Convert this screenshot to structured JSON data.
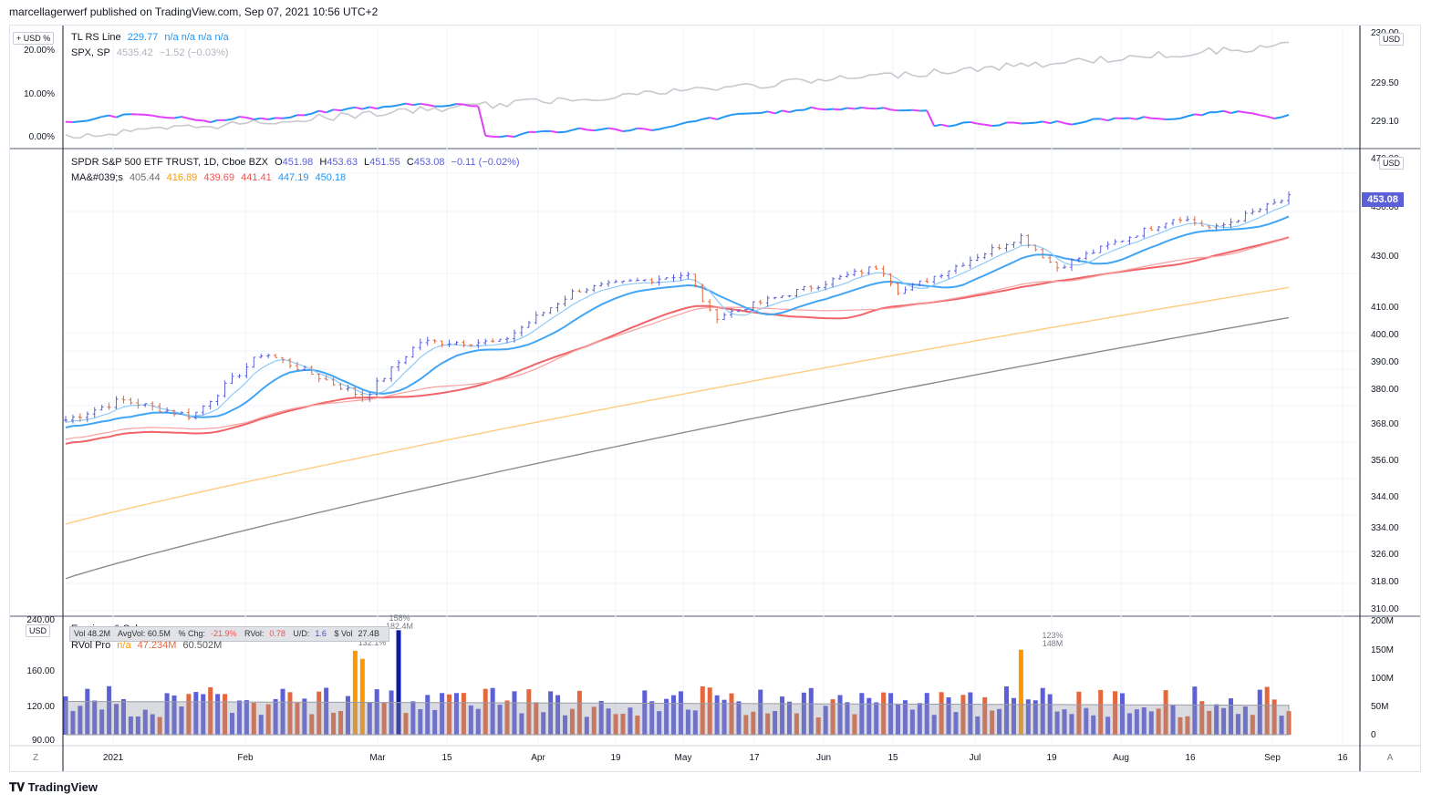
{
  "header": {
    "published": "marcellagerwerf published on TradingView.com, Sep 07, 2021 10:56 UTC+2"
  },
  "footer": {
    "brand": "TradingView",
    "logo": "tradingview-logo"
  },
  "colors": {
    "rs_line": "#2196f3",
    "rs_line_down": "#e040fb",
    "spx": "#c8c9cf",
    "ma_fast_light": "#90caf9",
    "ma_blue": "#42a5f5",
    "ma_red": "#f06468",
    "ma_orange": "#ffcc80",
    "ma_gray": "#8c8c8c",
    "bar_up": "#5b5fd8",
    "bar_down": "#e4683c",
    "bar_high": "#ff9800",
    "bar_max": "#0d1b9e"
  },
  "rs_pane": {
    "currency_badge": "+ USD %",
    "right_badge": "USD",
    "rs_legend": {
      "name": "TL RS Line",
      "value": "229.77",
      "extra": "n/a  n/a  n/a  n/a"
    },
    "spx_legend": {
      "name": "SPX, SP",
      "value": "4535.42",
      "change": "−1.52 (−0.03%)"
    },
    "left_ticks": [
      "20.00%",
      "10.00%",
      "0.00%"
    ],
    "right_ticks": [
      "230.00",
      "229.50",
      "229.10"
    ]
  },
  "price_pane": {
    "legend": {
      "title": "SPDR S&P 500 ETF TRUST, 1D, Cboe BZX",
      "o_label": "O",
      "o_val": "451.98",
      "h_label": "H",
      "h_val": "453.63",
      "l_label": "L",
      "l_val": "451.55",
      "c_label": "C",
      "c_val": "453.08",
      "chg": "−0.11 (−0.02%)"
    },
    "ma_legend": {
      "label": "MA&#039;s",
      "values": [
        "405.44",
        "416.89",
        "439.69",
        "441.41",
        "447.19",
        "450.18"
      ]
    },
    "right_badge": "USD",
    "last_price": "453.08",
    "y_ticks": [
      "470.00",
      "450.00",
      "430.00",
      "410.00",
      "400.00",
      "390.00",
      "380.00",
      "368.00",
      "356.00",
      "344.00",
      "334.00",
      "326.00",
      "318.00",
      "310.00"
    ]
  },
  "volume_pane": {
    "left_badge": "USD",
    "left_ticks": [
      "240.00",
      "160.00",
      "120.00",
      "90.00"
    ],
    "right_ticks": [
      "200M",
      "150M",
      "100M",
      "50M",
      "0"
    ],
    "legend_title": "Earnings & Sales",
    "rvol_legend": {
      "name": "RVol Pro",
      "v1": "n/a",
      "v2": "47.234M",
      "v3": "60.502M"
    },
    "stats": {
      "vol": "Vol 48.2M",
      "avg": "AvgVol: 60.5M",
      "pct_label": "% Chg:",
      "pct_val": "-21.9%",
      "rvol_label": "RVol:",
      "rvol_val": "0.78",
      "ud_label": "U/D:",
      "ud_val": "1.6",
      "dvol_label": "$ Vol",
      "dvol_val": "27.4B"
    },
    "annotations": [
      {
        "pct": "132.1%",
        "vol": ""
      },
      {
        "pct": "158%",
        "vol": "182.4M"
      },
      {
        "pct": "123%",
        "vol": "148M"
      }
    ]
  },
  "time_axis": {
    "left_corner": "Z",
    "right_corner": "A",
    "labels": [
      "2021",
      "Feb",
      "Mar",
      "15",
      "Apr",
      "19",
      "May",
      "17",
      "Jun",
      "15",
      "Jul",
      "19",
      "Aug",
      "16",
      "Sep",
      "16"
    ]
  },
  "chart_data": [
    {
      "type": "line",
      "title": "TL RS Line",
      "series": [
        {
          "name": "TL RS Line",
          "last": 229.77
        },
        {
          "name": "SPX, SP",
          "last": 4535.42
        }
      ],
      "ylim_right": [
        229.0,
        230.0
      ],
      "ylim_left_percent": [
        0,
        20
      ]
    },
    {
      "type": "line",
      "title": "SPDR S&P 500 ETF TRUST, 1D, Cboe BZX",
      "x_range": [
        "2021-01-04",
        "2021-09-03"
      ],
      "ohlc_last": {
        "open": 451.98,
        "high": 453.63,
        "low": 451.55,
        "close": 453.08,
        "change": -0.11,
        "change_pct": -0.02
      },
      "ma_last": [
        405.44,
        416.89,
        439.69,
        441.41,
        447.19,
        450.18
      ],
      "ylim": [
        310,
        470
      ],
      "y_scale": "log",
      "close_path": [
        {
          "x": "2021-01-04",
          "y": 368.8
        },
        {
          "x": "2021-01-15",
          "y": 375.7
        },
        {
          "x": "2021-01-29",
          "y": 370.1
        },
        {
          "x": "2021-02-12",
          "y": 392.6
        },
        {
          "x": "2021-03-04",
          "y": 376.7
        },
        {
          "x": "2021-03-15",
          "y": 396.4
        },
        {
          "x": "2021-03-31",
          "y": 396.3
        },
        {
          "x": "2021-04-15",
          "y": 415.9
        },
        {
          "x": "2021-05-07",
          "y": 422.1
        },
        {
          "x": "2021-05-12",
          "y": 405.4
        },
        {
          "x": "2021-06-14",
          "y": 425.3
        },
        {
          "x": "2021-06-18",
          "y": 414.9
        },
        {
          "x": "2021-07-12",
          "y": 437.1
        },
        {
          "x": "2021-07-19",
          "y": 424.6
        },
        {
          "x": "2021-08-12",
          "y": 445.1
        },
        {
          "x": "2021-08-19",
          "y": 439.9
        },
        {
          "x": "2021-09-03",
          "y": 453.08
        }
      ]
    },
    {
      "type": "bar",
      "title": "Volume",
      "ylim": [
        0,
        200
      ],
      "y_unit": "M",
      "avg_last_M": 60.502
    }
  ]
}
